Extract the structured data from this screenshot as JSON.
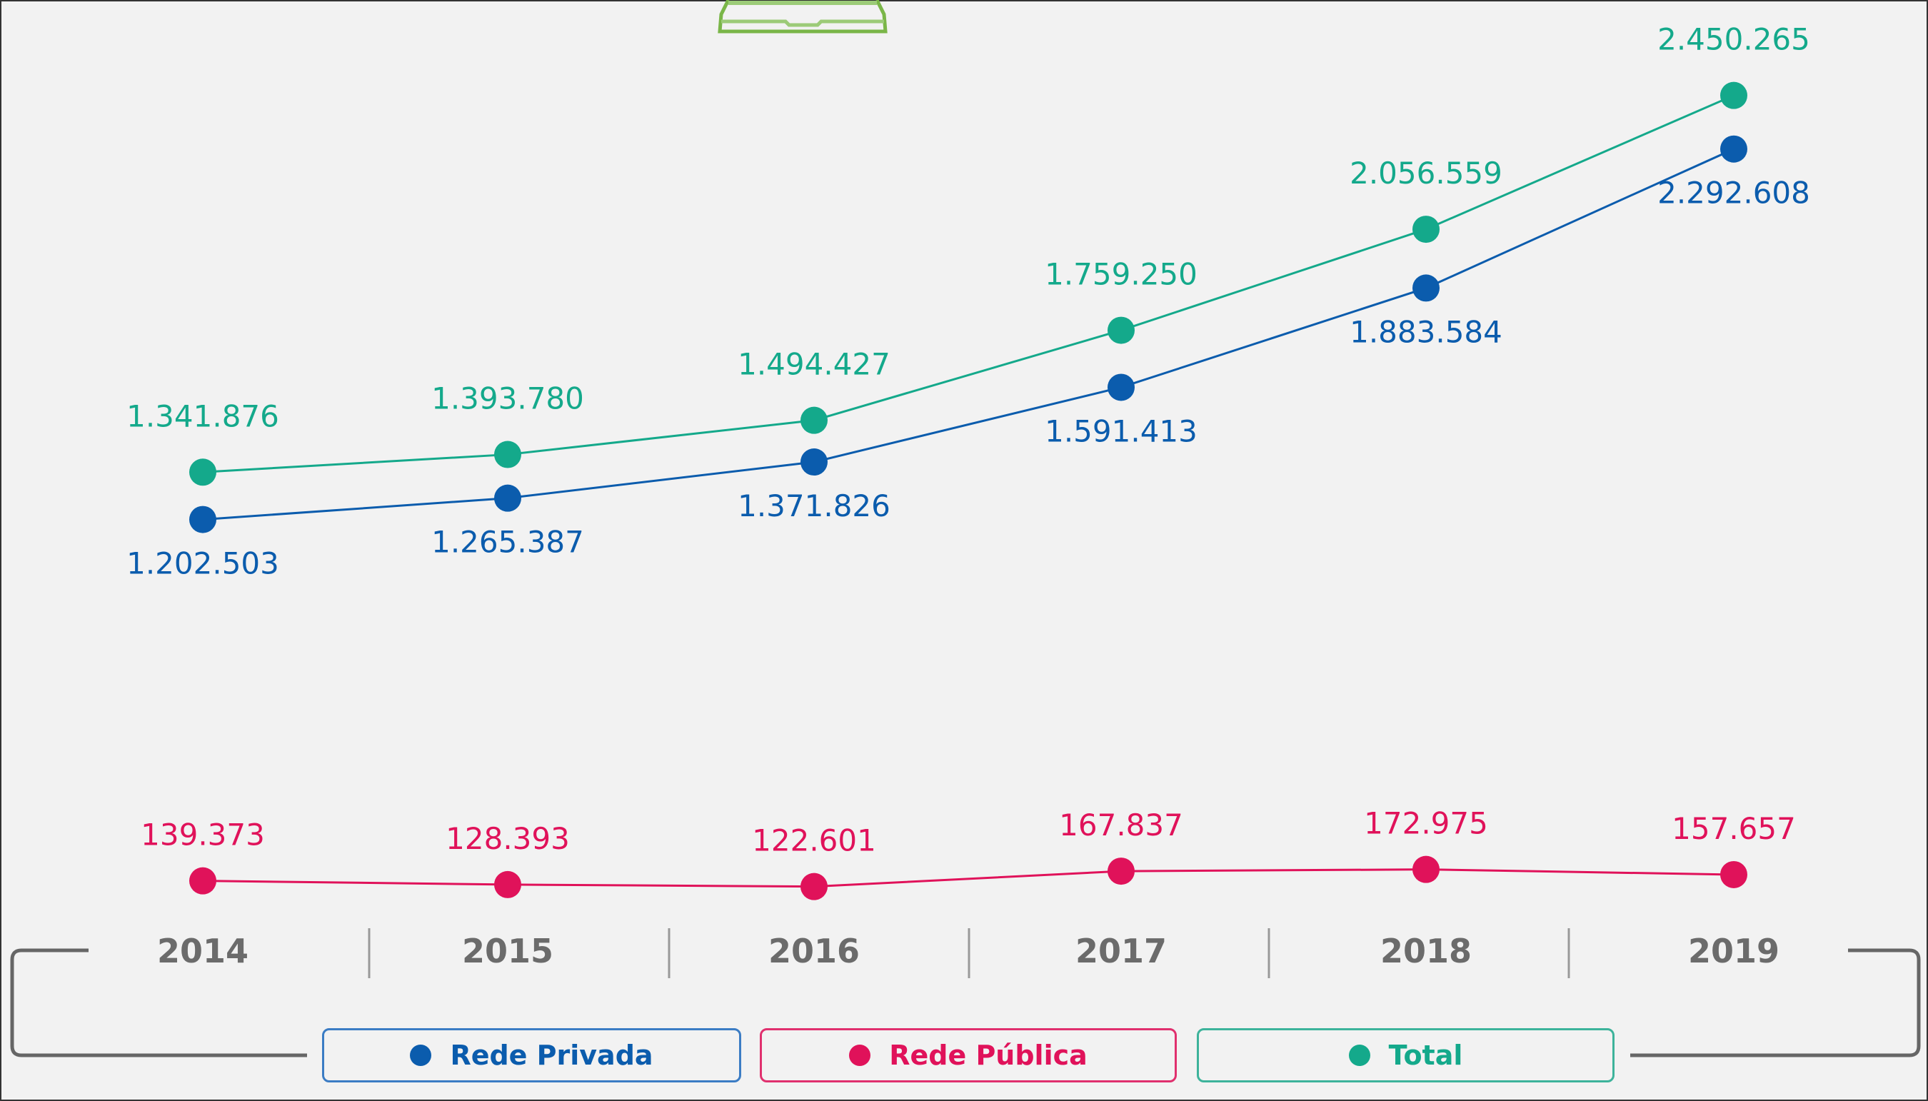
{
  "chart_data": {
    "type": "line",
    "title": "",
    "xlabel": "",
    "ylabel": "",
    "categories": [
      "2014",
      "2015",
      "2016",
      "2017",
      "2018",
      "2019"
    ],
    "series": [
      {
        "name": "Rede Privada",
        "color": "#0b5cad",
        "values": [
          1202503,
          1265387,
          1371826,
          1591413,
          1883584,
          2292608
        ],
        "labels": [
          "1.202.503",
          "1.265.387",
          "1.371.826",
          "1.591.413",
          "1.883.584",
          "2.292.608"
        ]
      },
      {
        "name": "Rede Pública",
        "color": "#e0125a",
        "values": [
          139373,
          128393,
          122601,
          167837,
          172975,
          157657
        ],
        "labels": [
          "139.373",
          "128.393",
          "122.601",
          "167.837",
          "172.975",
          "157.657"
        ]
      },
      {
        "name": "Total",
        "color": "#14a98b",
        "values": [
          1341876,
          1393780,
          1494427,
          1759250,
          2056559,
          2450265
        ],
        "labels": [
          "1.341.876",
          "1.393.780",
          "1.494.427",
          "1.759.250",
          "2.056.559",
          "2.450.265"
        ]
      }
    ],
    "ylim": [
      0,
      2730000
    ],
    "grid": false,
    "legend_position": "bottom"
  },
  "icon_color": "#7ab648"
}
